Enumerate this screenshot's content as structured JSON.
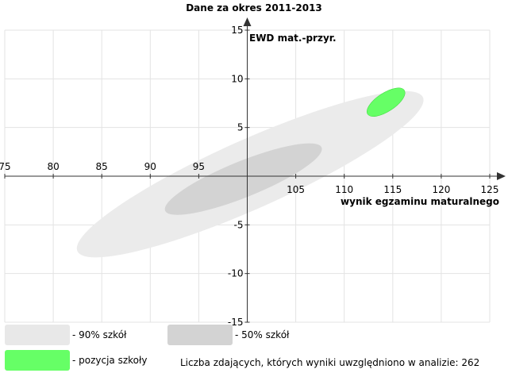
{
  "chart_data": {
    "type": "scatter",
    "title": "Dane za okres 2011-2013",
    "xlabel": "wynik egzaminu maturalnego",
    "ylabel": "EWD mat.-przyr.",
    "xlim": [
      75,
      125
    ],
    "ylim": [
      -15,
      15
    ],
    "x_ticks": [
      75,
      80,
      85,
      90,
      95,
      105,
      110,
      115,
      120,
      125
    ],
    "y_ticks": [
      15,
      10,
      5,
      -5,
      -10,
      -15
    ],
    "grid": true,
    "ellipses": [
      {
        "name": "- 90% szkół",
        "cx": 100.3,
        "cy": 0.2,
        "rx": 19.5,
        "ry": 3.55,
        "angle_deg": 24,
        "color": "#ebebeb"
      },
      {
        "name": "- 50% szkół",
        "cx": 99.6,
        "cy": -0.3,
        "rx": 8.7,
        "ry": 1.85,
        "angle_deg": 22,
        "color": "#d3d3d3"
      },
      {
        "name": "- pozycja szkoły",
        "cx": 114.3,
        "cy": 7.6,
        "rx": 2.25,
        "ry": 0.95,
        "angle_deg": 33,
        "color": "#66ff66"
      }
    ]
  },
  "legend": {
    "p90": "- 90% szkół",
    "p50": "- 50% szkół",
    "school": "- pozycja szkoły"
  },
  "note": "Liczba zdających, których wyniki uwzględniono w analizie: 262"
}
